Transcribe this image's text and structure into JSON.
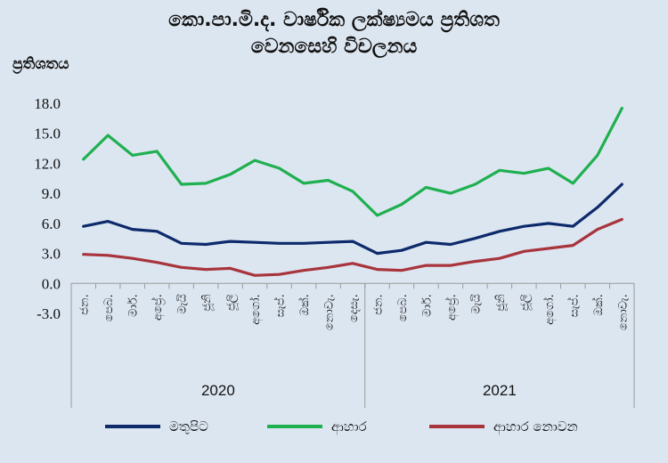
{
  "chart_data": {
    "type": "line",
    "title_line1": "කො.පා.මි.ද. වාර්ෂික ලක්ෂ්‍යමය ප්‍රතිශත",
    "title_line2": "වෙනසෙහි විචලනය",
    "ylabel": "ප්‍රතිශතය",
    "ylim": [
      -3.0,
      18.0
    ],
    "yticks": [
      "18.0",
      "15.0",
      "12.0",
      "9.0",
      "6.0",
      "3.0",
      "0.0",
      "-3.0"
    ],
    "categories": [
      "ජන.",
      "පෙබ.",
      "මාර්.",
      "අප්‍රේ.",
      "මැයි",
      "ජූනි",
      "ජූලි",
      "අගෝ.",
      "සැප්.",
      "ඔක්.",
      "නොවැ.",
      "දෙසැ.",
      "ජන.",
      "පෙබ.",
      "මාර්.",
      "අප්‍රේ.",
      "මැයි",
      "ජූනි",
      "ජූලි",
      "අගෝ.",
      "සැප්.",
      "ඔක්.",
      "නොවැ."
    ],
    "years": [
      {
        "label": "2020",
        "count": 12
      },
      {
        "label": "2021",
        "count": 11
      }
    ],
    "series": [
      {
        "name": "මතුපිට",
        "color": "#0d2a6b",
        "values": [
          5.7,
          6.2,
          5.4,
          5.2,
          4.0,
          3.9,
          4.2,
          4.1,
          4.0,
          4.0,
          4.1,
          4.2,
          3.0,
          3.3,
          4.1,
          3.9,
          4.5,
          5.2,
          5.7,
          6.0,
          5.7,
          7.6,
          9.9
        ]
      },
      {
        "name": "ආහාර",
        "color": "#1fb04f",
        "values": [
          12.4,
          14.8,
          12.8,
          13.2,
          9.9,
          10.0,
          10.9,
          12.3,
          11.5,
          10.0,
          10.3,
          9.2,
          6.8,
          7.9,
          9.6,
          9.0,
          9.9,
          11.3,
          11.0,
          11.5,
          10.0,
          12.8,
          17.5
        ]
      },
      {
        "name": "ආහාර නොවන",
        "color": "#a8343c",
        "values": [
          2.9,
          2.8,
          2.5,
          2.1,
          1.6,
          1.4,
          1.5,
          0.8,
          0.9,
          1.3,
          1.6,
          2.0,
          1.4,
          1.3,
          1.8,
          1.8,
          2.2,
          2.5,
          3.2,
          3.5,
          3.8,
          5.4,
          6.4
        ]
      }
    ]
  }
}
